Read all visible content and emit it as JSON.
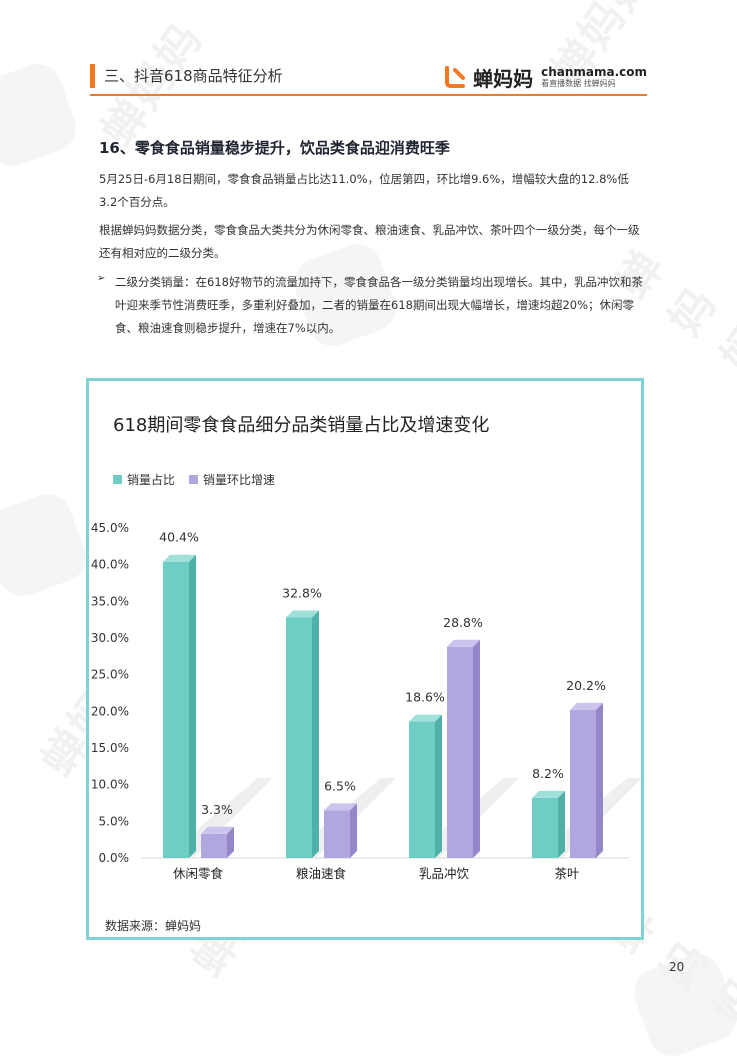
{
  "header": {
    "section_label": "三、抖音618商品特征分析",
    "brand_cn": "蝉妈妈",
    "brand_en": "chanmama.com",
    "brand_tagline": "看直播数据 找蝉妈妈",
    "accent_color": "#f47920"
  },
  "article": {
    "title": "16、零食食品销量稳步提升，饮品类食品迎消费旺季",
    "paragraph_1": "5月25日-6月18日期间，零食食品销量占比达11.0%，位居第四，环比增9.6%，增幅较大盘的12.8%低3.2个百分点。",
    "paragraph_2": "根据蝉妈妈数据分类，零食食品大类共分为休闲零食、粮油速食、乳品冲饮、茶叶四个一级分类，每个一级还有相对应的二级分类。",
    "bullet_marker": "➢",
    "bullet_1": "二级分类销量：在618好物节的流量加持下，零食食品各一级分类销量均出现增长。其中，乳品冲饮和茶叶迎来季节性消费旺季，多重利好叠加，二者的销量在618期间出现大幅增长，增速均超20%；休闲零食、粮油速食则稳步提升，增速在7%以内。"
  },
  "chart_data": {
    "type": "bar",
    "title": "618期间零食食品细分品类销量占比及增速变化",
    "categories": [
      "休闲零食",
      "粮油速食",
      "乳品冲饮",
      "茶叶"
    ],
    "series": [
      {
        "name": "销量占比",
        "values": [
          40.4,
          32.8,
          18.6,
          8.2
        ],
        "labels": [
          "40.4%",
          "32.8%",
          "18.6%",
          "8.2%"
        ],
        "color": "#6ecdc4"
      },
      {
        "name": "销量环比增速",
        "values": [
          3.3,
          6.5,
          28.8,
          20.2
        ],
        "labels": [
          "3.3%",
          "6.5%",
          "28.8%",
          "20.2%"
        ],
        "color": "#b2a6de"
      }
    ],
    "yticks": [
      "45.0%",
      "40.0%",
      "35.0%",
      "30.0%",
      "25.0%",
      "20.0%",
      "15.0%",
      "10.0%",
      "5.0%",
      "0.0%"
    ],
    "ylim": [
      0,
      45
    ],
    "legend": "top-left",
    "grid": false,
    "source": "数据来源：蝉妈妈",
    "frame_color": "#7ed3d3"
  },
  "watermark_text": "蝉妈妈",
  "page_number": "20"
}
